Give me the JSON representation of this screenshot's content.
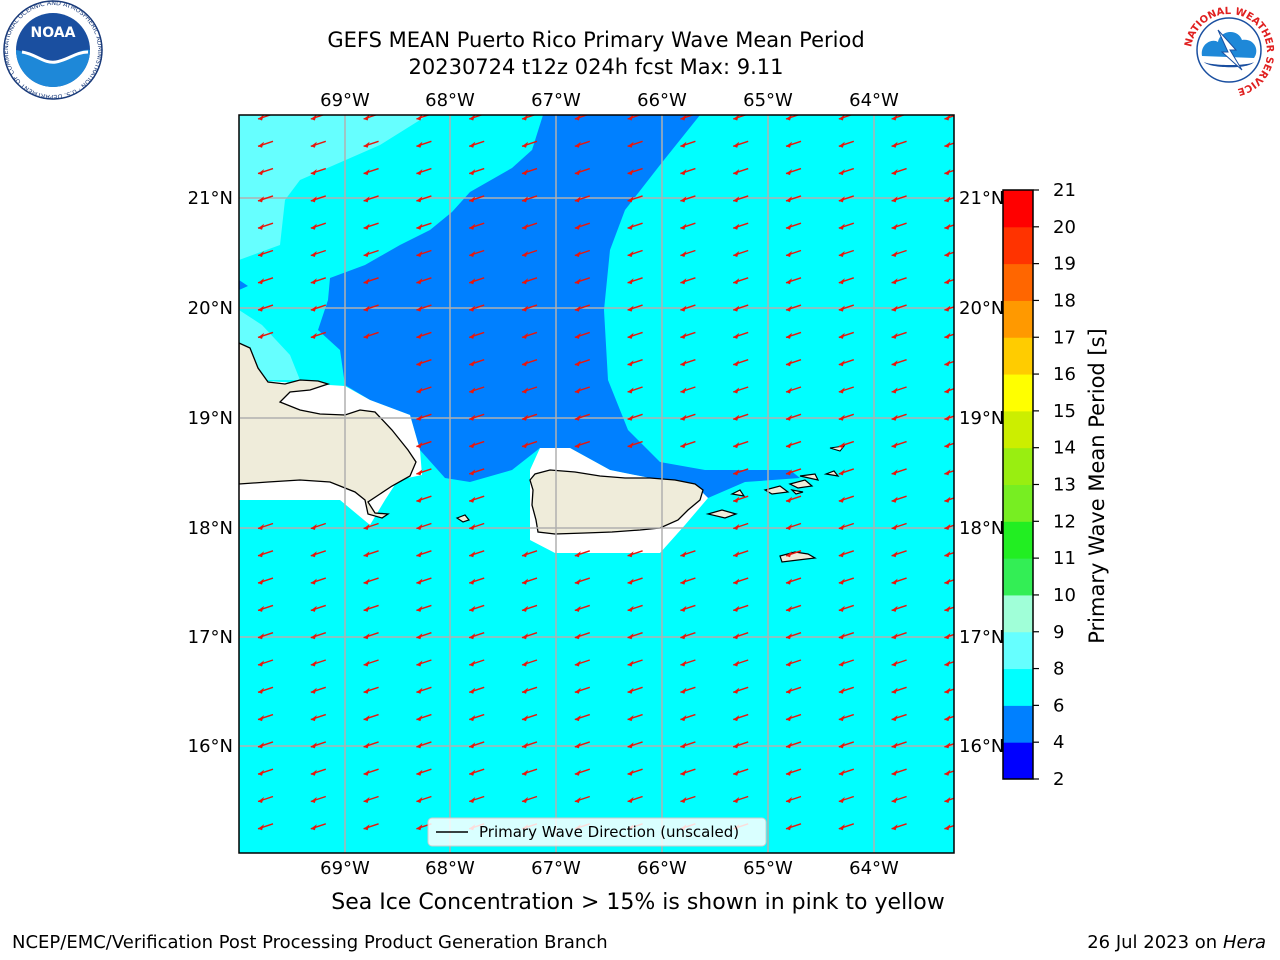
{
  "title": {
    "line1": "GEFS MEAN Puerto Rico Primary Wave Mean Period",
    "line2": "20230724 t12z 024h fcst   Max: 9.11"
  },
  "map": {
    "lon_labels": [
      "69°W",
      "68°W",
      "67°W",
      "66°W",
      "65°W",
      "64°W"
    ],
    "lat_labels": [
      "21°N",
      "20°N",
      "19°N",
      "18°N",
      "17°N",
      "16°N"
    ],
    "legend_label": "Primary Wave Direction (unscaled)",
    "colors": {
      "ocean_light": "#00ffff",
      "ocean_mid": "#0080ff",
      "ocean_aqua": "#66ffff",
      "land": "#efecda",
      "arrow": "#e8160c",
      "grid": "#b0b0b0"
    }
  },
  "colorbar": {
    "title": "Primary Wave Mean Period [s]",
    "ticks": [
      "2",
      "4",
      "6",
      "8",
      "9",
      "10",
      "11",
      "12",
      "13",
      "14",
      "15",
      "16",
      "17",
      "18",
      "19",
      "20",
      "21"
    ],
    "bands": [
      {
        "from": "2",
        "to": "4",
        "color": "#0000ff"
      },
      {
        "from": "4",
        "to": "6",
        "color": "#0080ff"
      },
      {
        "from": "6",
        "to": "8",
        "color": "#00ffff"
      },
      {
        "from": "8",
        "to": "9",
        "color": "#66ffff"
      },
      {
        "from": "9",
        "to": "10",
        "color": "#a0ffd8"
      },
      {
        "from": "10",
        "to": "11",
        "color": "#33ee55"
      },
      {
        "from": "11",
        "to": "12",
        "color": "#22ee22"
      },
      {
        "from": "12",
        "to": "13",
        "color": "#77ee22"
      },
      {
        "from": "13",
        "to": "14",
        "color": "#99ee11"
      },
      {
        "from": "14",
        "to": "15",
        "color": "#ccee00"
      },
      {
        "from": "15",
        "to": "16",
        "color": "#ffff00"
      },
      {
        "from": "16",
        "to": "17",
        "color": "#ffcc00"
      },
      {
        "from": "17",
        "to": "18",
        "color": "#ff9900"
      },
      {
        "from": "18",
        "to": "19",
        "color": "#ff6600"
      },
      {
        "from": "19",
        "to": "20",
        "color": "#ff3300"
      },
      {
        "from": "20",
        "to": "21",
        "color": "#ff0000"
      }
    ]
  },
  "subtitle": "Sea Ice Concentration > 15% is shown in pink to yellow",
  "footer": {
    "left": "NCEP/EMC/Verification Post Processing Product Generation Branch",
    "date": "26 Jul 2023 on ",
    "machine": "Hera"
  },
  "logos": {
    "noaa_text": "NOAA",
    "noaa_ring": "NATIONAL OCEANIC AND ATMOSPHERIC ADMINISTRATION · U.S. DEPARTMENT OF COMMERCE",
    "nws_ring": "NATIONAL WEATHER SERVICE"
  }
}
